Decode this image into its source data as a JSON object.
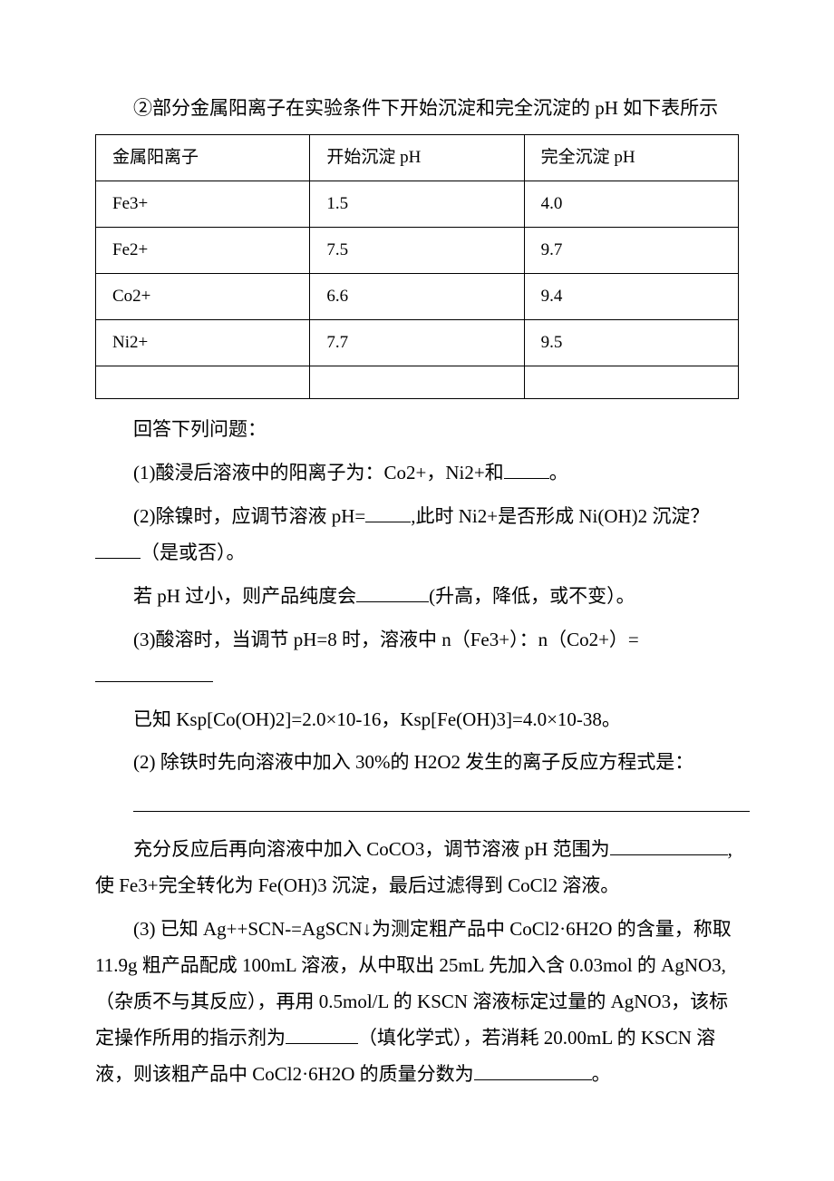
{
  "intro_line": "②部分金属阳离子在实验条件下开始沉淀和完全沉淀的 pH 如下表所示",
  "table": {
    "columns": [
      "金属阳离子",
      "开始沉淀 pH",
      "完全沉淀 pH"
    ],
    "rows": [
      [
        "Fe3+",
        "1.5",
        "4.0"
      ],
      [
        "Fe2+",
        "7.5",
        "9.7"
      ],
      [
        "Co2+",
        "6.6",
        "9.4"
      ],
      [
        "Ni2+",
        "7.7",
        "9.5"
      ],
      [
        "",
        "",
        ""
      ]
    ]
  },
  "q_header": "回答下列问题：",
  "q1_before": "(1)酸浸后溶液中的阳离子为：Co2+，Ni2+和",
  "q1_after": "。",
  "q2a_before": "(2)除镍时，应调节溶液 pH=",
  "q2a_mid": ",此时 Ni2+是否形成 Ni(OH)2 沉淀？",
  "q2a_after": "（是或否）。",
  "q2b_before": "若 pH 过小，则产品纯度会",
  "q2b_after": "(升高，降低，或不变）。",
  "q3a_before": "(3)酸溶时，当调节 pH=8 时，溶液中 n（Fe3+）：n（Co2+）=",
  "ksp_line": "已知 Ksp[Co(OH)2]=2.0×10-16，Ksp[Fe(OH)3]=4.0×10-38。",
  "rx_line": "(2) 除铁时先向溶液中加入 30%的 H2O2 发生的离子反应方程式是：",
  "coco3_before": "充分反应后再向溶液中加入 CoCO3，调节溶液 pH 范围为",
  "coco3_after": ",使 Fe3+完全转化为 Fe(OH)3 沉淀，最后过滤得到 CoCl2 溶液。",
  "q5_before": "(3) 已知 Ag++SCN-=AgSCN↓为测定粗产品中 CoCl2·6H2O 的含量，称取 11.9g 粗产品配成 100mL 溶液，从中取出 25mL 先加入含 0.03mol 的 AgNO3,（杂质不与其反应），再用 0.5mol/L 的 KSCN 溶液标定过量的 AgNO3，该标定操作所用的指示剂为",
  "q5_mid": "（填化学式），若消耗 20.00mL 的 KSCN 溶液，则该粗产品中 CoCl2·6H2O 的质量分数为",
  "q5_after": "。"
}
